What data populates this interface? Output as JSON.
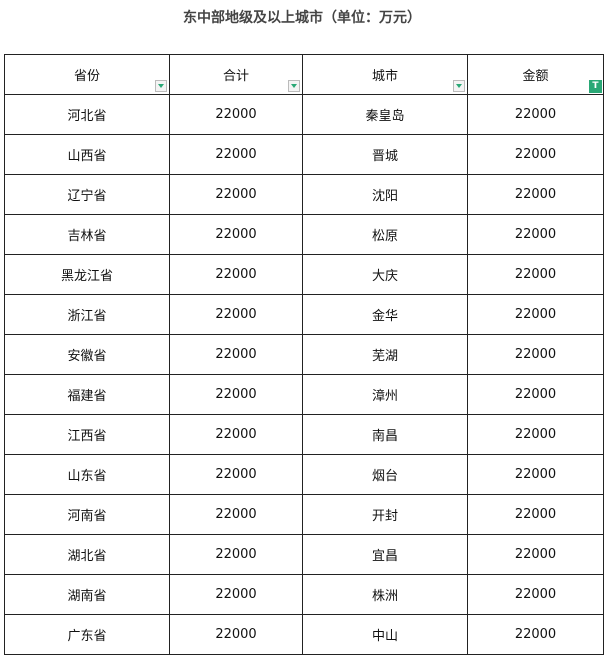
{
  "title": "东中部地级及以上城市（单位：万元）",
  "columns": [
    "省份",
    "合计",
    "城市",
    "金额"
  ],
  "rows": [
    [
      "河北省",
      "22000",
      "秦皇岛",
      "22000"
    ],
    [
      "山西省",
      "22000",
      "晋城",
      "22000"
    ],
    [
      "辽宁省",
      "22000",
      "沈阳",
      "22000"
    ],
    [
      "吉林省",
      "22000",
      "松原",
      "22000"
    ],
    [
      "黑龙江省",
      "22000",
      "大庆",
      "22000"
    ],
    [
      "浙江省",
      "22000",
      "金华",
      "22000"
    ],
    [
      "安徽省",
      "22000",
      "芜湖",
      "22000"
    ],
    [
      "福建省",
      "22000",
      "漳州",
      "22000"
    ],
    [
      "江西省",
      "22000",
      "南昌",
      "22000"
    ],
    [
      "山东省",
      "22000",
      "烟台",
      "22000"
    ],
    [
      "河南省",
      "22000",
      "开封",
      "22000"
    ],
    [
      "湖北省",
      "22000",
      "宜昌",
      "22000"
    ],
    [
      "湖南省",
      "22000",
      "株洲",
      "22000"
    ],
    [
      "广东省",
      "22000",
      "中山",
      "22000"
    ]
  ],
  "colors": {
    "filter_accent": "#2aa876"
  },
  "icons": {
    "filter": "dropdown-filter-icon",
    "filter_active": "active-filter-icon"
  }
}
